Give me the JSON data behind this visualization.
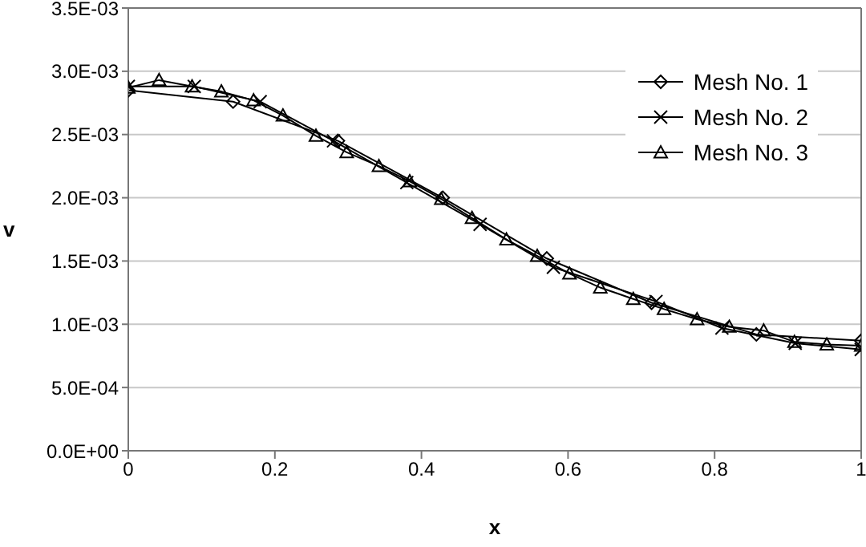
{
  "chart_data": {
    "type": "line",
    "xlabel": "x",
    "ylabel": "v",
    "xlim": [
      0,
      1
    ],
    "xticks": [
      0,
      0.2,
      0.4,
      0.6,
      0.8,
      1
    ],
    "ylim": [
      0,
      0.0035
    ],
    "yticks": [
      {
        "value": 0,
        "label": "0.0E+00"
      },
      {
        "value": 0.0005,
        "label": "5.0E-04"
      },
      {
        "value": 0.001,
        "label": "1.0E-03"
      },
      {
        "value": 0.0015,
        "label": "1.5E-03"
      },
      {
        "value": 0.002,
        "label": "2.0E-03"
      },
      {
        "value": 0.0025,
        "label": "2.5E-03"
      },
      {
        "value": 0.003,
        "label": "3.0E-03"
      },
      {
        "value": 0.0035,
        "label": "3.5E-03"
      }
    ],
    "grid": "y",
    "legend": "top right",
    "series": [
      {
        "name": "Mesh No. 1",
        "color": "#000000",
        "marker": "diamond",
        "x": [
          0,
          0.143,
          0.286,
          0.429,
          0.571,
          0.714,
          0.857,
          1
        ],
        "values": [
          0.00285,
          0.00276,
          0.00245,
          0.002,
          0.00152,
          0.00117,
          0.00092,
          0.00087
        ]
      },
      {
        "name": "Mesh No. 2",
        "color": "#000000",
        "marker": "cross",
        "x": [
          0,
          0.09,
          0.18,
          0.28,
          0.38,
          0.48,
          0.58,
          0.72,
          0.81,
          0.91,
          1
        ],
        "values": [
          0.00288,
          0.00288,
          0.00276,
          0.00245,
          0.00212,
          0.00179,
          0.00145,
          0.00118,
          0.00097,
          0.00085,
          0.0008
        ]
      },
      {
        "name": "Mesh No. 3",
        "color": "#000000",
        "marker": "triangle",
        "x": [
          0,
          0.042,
          0.087,
          0.127,
          0.171,
          0.211,
          0.256,
          0.298,
          0.342,
          0.384,
          0.427,
          0.469,
          0.516,
          0.558,
          0.602,
          0.644,
          0.689,
          0.731,
          0.776,
          0.82,
          0.867,
          0.909,
          0.953,
          1
        ],
        "values": [
          0.00287,
          0.00293,
          0.00288,
          0.00284,
          0.00277,
          0.00265,
          0.00249,
          0.00236,
          0.00225,
          0.00213,
          0.00199,
          0.00184,
          0.00167,
          0.00154,
          0.0014,
          0.00129,
          0.0012,
          0.00112,
          0.00104,
          0.00098,
          0.00095,
          0.00086,
          0.00084,
          0.00083
        ]
      }
    ]
  }
}
